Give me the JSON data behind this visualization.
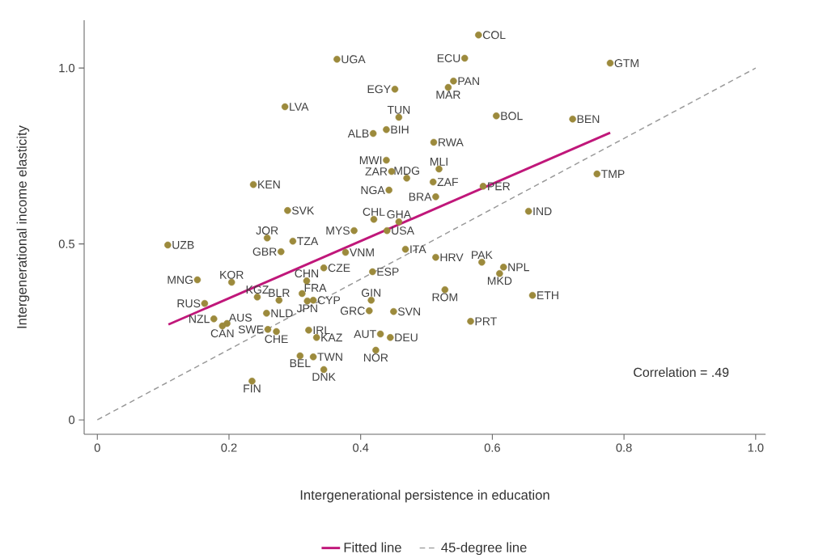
{
  "chart_data": {
    "type": "scatter",
    "xlabel": "Intergenerational persistence in education",
    "ylabel": "Intergenerational income elasticity",
    "xlim": [
      -0.02,
      1.015
    ],
    "ylim": [
      -0.041,
      1.136
    ],
    "xticks": [
      0,
      0.2,
      0.4,
      0.6,
      0.8,
      {
        "value": 1,
        "label": "1.0"
      }
    ],
    "yticks": [
      0,
      0.5,
      {
        "value": 1,
        "label": "1.0"
      }
    ],
    "legend": "bottom",
    "marker": "circle",
    "series": [
      {
        "color": "#9c8a3c",
        "x": [
          0.579,
          0.558,
          0.779,
          0.364,
          0.541,
          0.533,
          0.452,
          0.285,
          0.458,
          0.606,
          0.722,
          0.419,
          0.439,
          0.511,
          0.519,
          0.439,
          0.447,
          0.47,
          0.237,
          0.51,
          0.586,
          0.759,
          0.443,
          0.514,
          0.655,
          0.289,
          0.42,
          0.458,
          0.44,
          0.39,
          0.258,
          0.297,
          0.107,
          0.279,
          0.377,
          0.468,
          0.514,
          0.584,
          0.617,
          0.611,
          0.344,
          0.418,
          0.318,
          0.204,
          0.152,
          0.243,
          0.276,
          0.311,
          0.319,
          0.328,
          0.416,
          0.528,
          0.661,
          0.163,
          0.197,
          0.19,
          0.177,
          0.257,
          0.413,
          0.45,
          0.259,
          0.272,
          0.321,
          0.333,
          0.43,
          0.445,
          0.567,
          0.423,
          0.308,
          0.328,
          0.344,
          0.235
        ],
        "values": [
          1.094,
          1.028,
          1.014,
          1.025,
          0.963,
          0.945,
          0.94,
          0.89,
          0.86,
          0.864,
          0.855,
          0.814,
          0.825,
          0.789,
          0.713,
          0.738,
          0.706,
          0.687,
          0.669,
          0.676,
          0.664,
          0.699,
          0.653,
          0.634,
          0.593,
          0.595,
          0.57,
          0.563,
          0.538,
          0.538,
          0.517,
          0.508,
          0.497,
          0.478,
          0.476,
          0.485,
          0.462,
          0.448,
          0.434,
          0.416,
          0.432,
          0.421,
          0.395,
          0.391,
          0.398,
          0.349,
          0.34,
          0.359,
          0.338,
          0.34,
          0.34,
          0.37,
          0.354,
          0.331,
          0.274,
          0.267,
          0.287,
          0.303,
          0.31,
          0.308,
          0.257,
          0.251,
          0.255,
          0.234,
          0.244,
          0.234,
          0.28,
          0.198,
          0.182,
          0.179,
          0.143,
          0.11
        ]
      },
      {
        "type": "line",
        "name": "Fitted line",
        "color": "#c0177a",
        "marker": "none",
        "line_style": "solid",
        "x": [
          0.108,
          0.779
        ],
        "values": [
          0.271,
          0.816
        ]
      },
      {
        "type": "line",
        "name": "45-degree line",
        "color": "#999999",
        "marker": "none",
        "line_style": "dashed",
        "x": [
          0,
          1
        ],
        "values": [
          0,
          1
        ]
      }
    ],
    "annotations": [
      {
        "text": "COL",
        "x": 0.579,
        "y": 1.094
      },
      {
        "text": "ECU",
        "x": 0.558,
        "y": 1.028
      },
      {
        "text": "GTM",
        "x": 0.779,
        "y": 1.014
      },
      {
        "text": "UGA",
        "x": 0.364,
        "y": 1.025
      },
      {
        "text": "PAN",
        "x": 0.541,
        "y": 0.963
      },
      {
        "text": "MAR",
        "x": 0.533,
        "y": 0.945
      },
      {
        "text": "EGY",
        "x": 0.452,
        "y": 0.94
      },
      {
        "text": "LVA",
        "x": 0.285,
        "y": 0.89
      },
      {
        "text": "TUN",
        "x": 0.458,
        "y": 0.86
      },
      {
        "text": "BOL",
        "x": 0.606,
        "y": 0.864
      },
      {
        "text": "BEN",
        "x": 0.722,
        "y": 0.855
      },
      {
        "text": "ALB",
        "x": 0.419,
        "y": 0.814
      },
      {
        "text": "BIH",
        "x": 0.439,
        "y": 0.825
      },
      {
        "text": "RWA",
        "x": 0.511,
        "y": 0.789
      },
      {
        "text": "MLI",
        "x": 0.519,
        "y": 0.713
      },
      {
        "text": "MWI",
        "x": 0.439,
        "y": 0.738
      },
      {
        "text": "ZAR",
        "x": 0.447,
        "y": 0.706
      },
      {
        "text": "MDG",
        "x": 0.47,
        "y": 0.687
      },
      {
        "text": "KEN",
        "x": 0.237,
        "y": 0.669
      },
      {
        "text": "ZAF",
        "x": 0.51,
        "y": 0.676
      },
      {
        "text": "PER",
        "x": 0.586,
        "y": 0.664
      },
      {
        "text": "TMP",
        "x": 0.759,
        "y": 0.699
      },
      {
        "text": "NGA",
        "x": 0.443,
        "y": 0.653
      },
      {
        "text": "BRA",
        "x": 0.514,
        "y": 0.634
      },
      {
        "text": "IND",
        "x": 0.655,
        "y": 0.593
      },
      {
        "text": "SVK",
        "x": 0.289,
        "y": 0.595
      },
      {
        "text": "CHL",
        "x": 0.42,
        "y": 0.57
      },
      {
        "text": "GHA",
        "x": 0.458,
        "y": 0.563
      },
      {
        "text": "USA",
        "x": 0.44,
        "y": 0.538
      },
      {
        "text": "MYS",
        "x": 0.39,
        "y": 0.538
      },
      {
        "text": "JOR",
        "x": 0.258,
        "y": 0.517
      },
      {
        "text": "TZA",
        "x": 0.297,
        "y": 0.508
      },
      {
        "text": "UZB",
        "x": 0.107,
        "y": 0.497
      },
      {
        "text": "GBR",
        "x": 0.279,
        "y": 0.478
      },
      {
        "text": "VNM",
        "x": 0.377,
        "y": 0.476
      },
      {
        "text": "ITA",
        "x": 0.468,
        "y": 0.485
      },
      {
        "text": "HRV",
        "x": 0.514,
        "y": 0.462
      },
      {
        "text": "PAK",
        "x": 0.584,
        "y": 0.448
      },
      {
        "text": "NPL",
        "x": 0.617,
        "y": 0.434
      },
      {
        "text": "MKD",
        "x": 0.611,
        "y": 0.416
      },
      {
        "text": "CZE",
        "x": 0.344,
        "y": 0.432
      },
      {
        "text": "ESP",
        "x": 0.418,
        "y": 0.421
      },
      {
        "text": "CHN",
        "x": 0.318,
        "y": 0.395
      },
      {
        "text": "KOR",
        "x": 0.204,
        "y": 0.391
      },
      {
        "text": "MNG",
        "x": 0.152,
        "y": 0.398
      },
      {
        "text": "KGZ",
        "x": 0.243,
        "y": 0.349
      },
      {
        "text": "BLR",
        "x": 0.276,
        "y": 0.34
      },
      {
        "text": "FRA",
        "x": 0.311,
        "y": 0.359
      },
      {
        "text": "JPN",
        "x": 0.319,
        "y": 0.338
      },
      {
        "text": "CYP",
        "x": 0.328,
        "y": 0.34
      },
      {
        "text": "GIN",
        "x": 0.416,
        "y": 0.34
      },
      {
        "text": "ROM",
        "x": 0.528,
        "y": 0.37
      },
      {
        "text": "ETH",
        "x": 0.661,
        "y": 0.354
      },
      {
        "text": "RUS",
        "x": 0.163,
        "y": 0.331
      },
      {
        "text": "AUS",
        "x": 0.197,
        "y": 0.274
      },
      {
        "text": "CAN",
        "x": 0.19,
        "y": 0.267
      },
      {
        "text": "NZL",
        "x": 0.177,
        "y": 0.287
      },
      {
        "text": "NLD",
        "x": 0.257,
        "y": 0.303
      },
      {
        "text": "GRC",
        "x": 0.413,
        "y": 0.31
      },
      {
        "text": "SVN",
        "x": 0.45,
        "y": 0.308
      },
      {
        "text": "SWE",
        "x": 0.259,
        "y": 0.257
      },
      {
        "text": "CHE",
        "x": 0.272,
        "y": 0.251
      },
      {
        "text": "IRL",
        "x": 0.321,
        "y": 0.255
      },
      {
        "text": "KAZ",
        "x": 0.333,
        "y": 0.234
      },
      {
        "text": "AUT",
        "x": 0.43,
        "y": 0.244
      },
      {
        "text": "DEU",
        "x": 0.445,
        "y": 0.234
      },
      {
        "text": "PRT",
        "x": 0.567,
        "y": 0.28
      },
      {
        "text": "NOR",
        "x": 0.423,
        "y": 0.198
      },
      {
        "text": "BEL",
        "x": 0.308,
        "y": 0.182
      },
      {
        "text": "TWN",
        "x": 0.328,
        "y": 0.179
      },
      {
        "text": "DNK",
        "x": 0.344,
        "y": 0.143
      },
      {
        "text": "FIN",
        "x": 0.235,
        "y": 0.11
      },
      "Correlation = .49"
    ]
  }
}
